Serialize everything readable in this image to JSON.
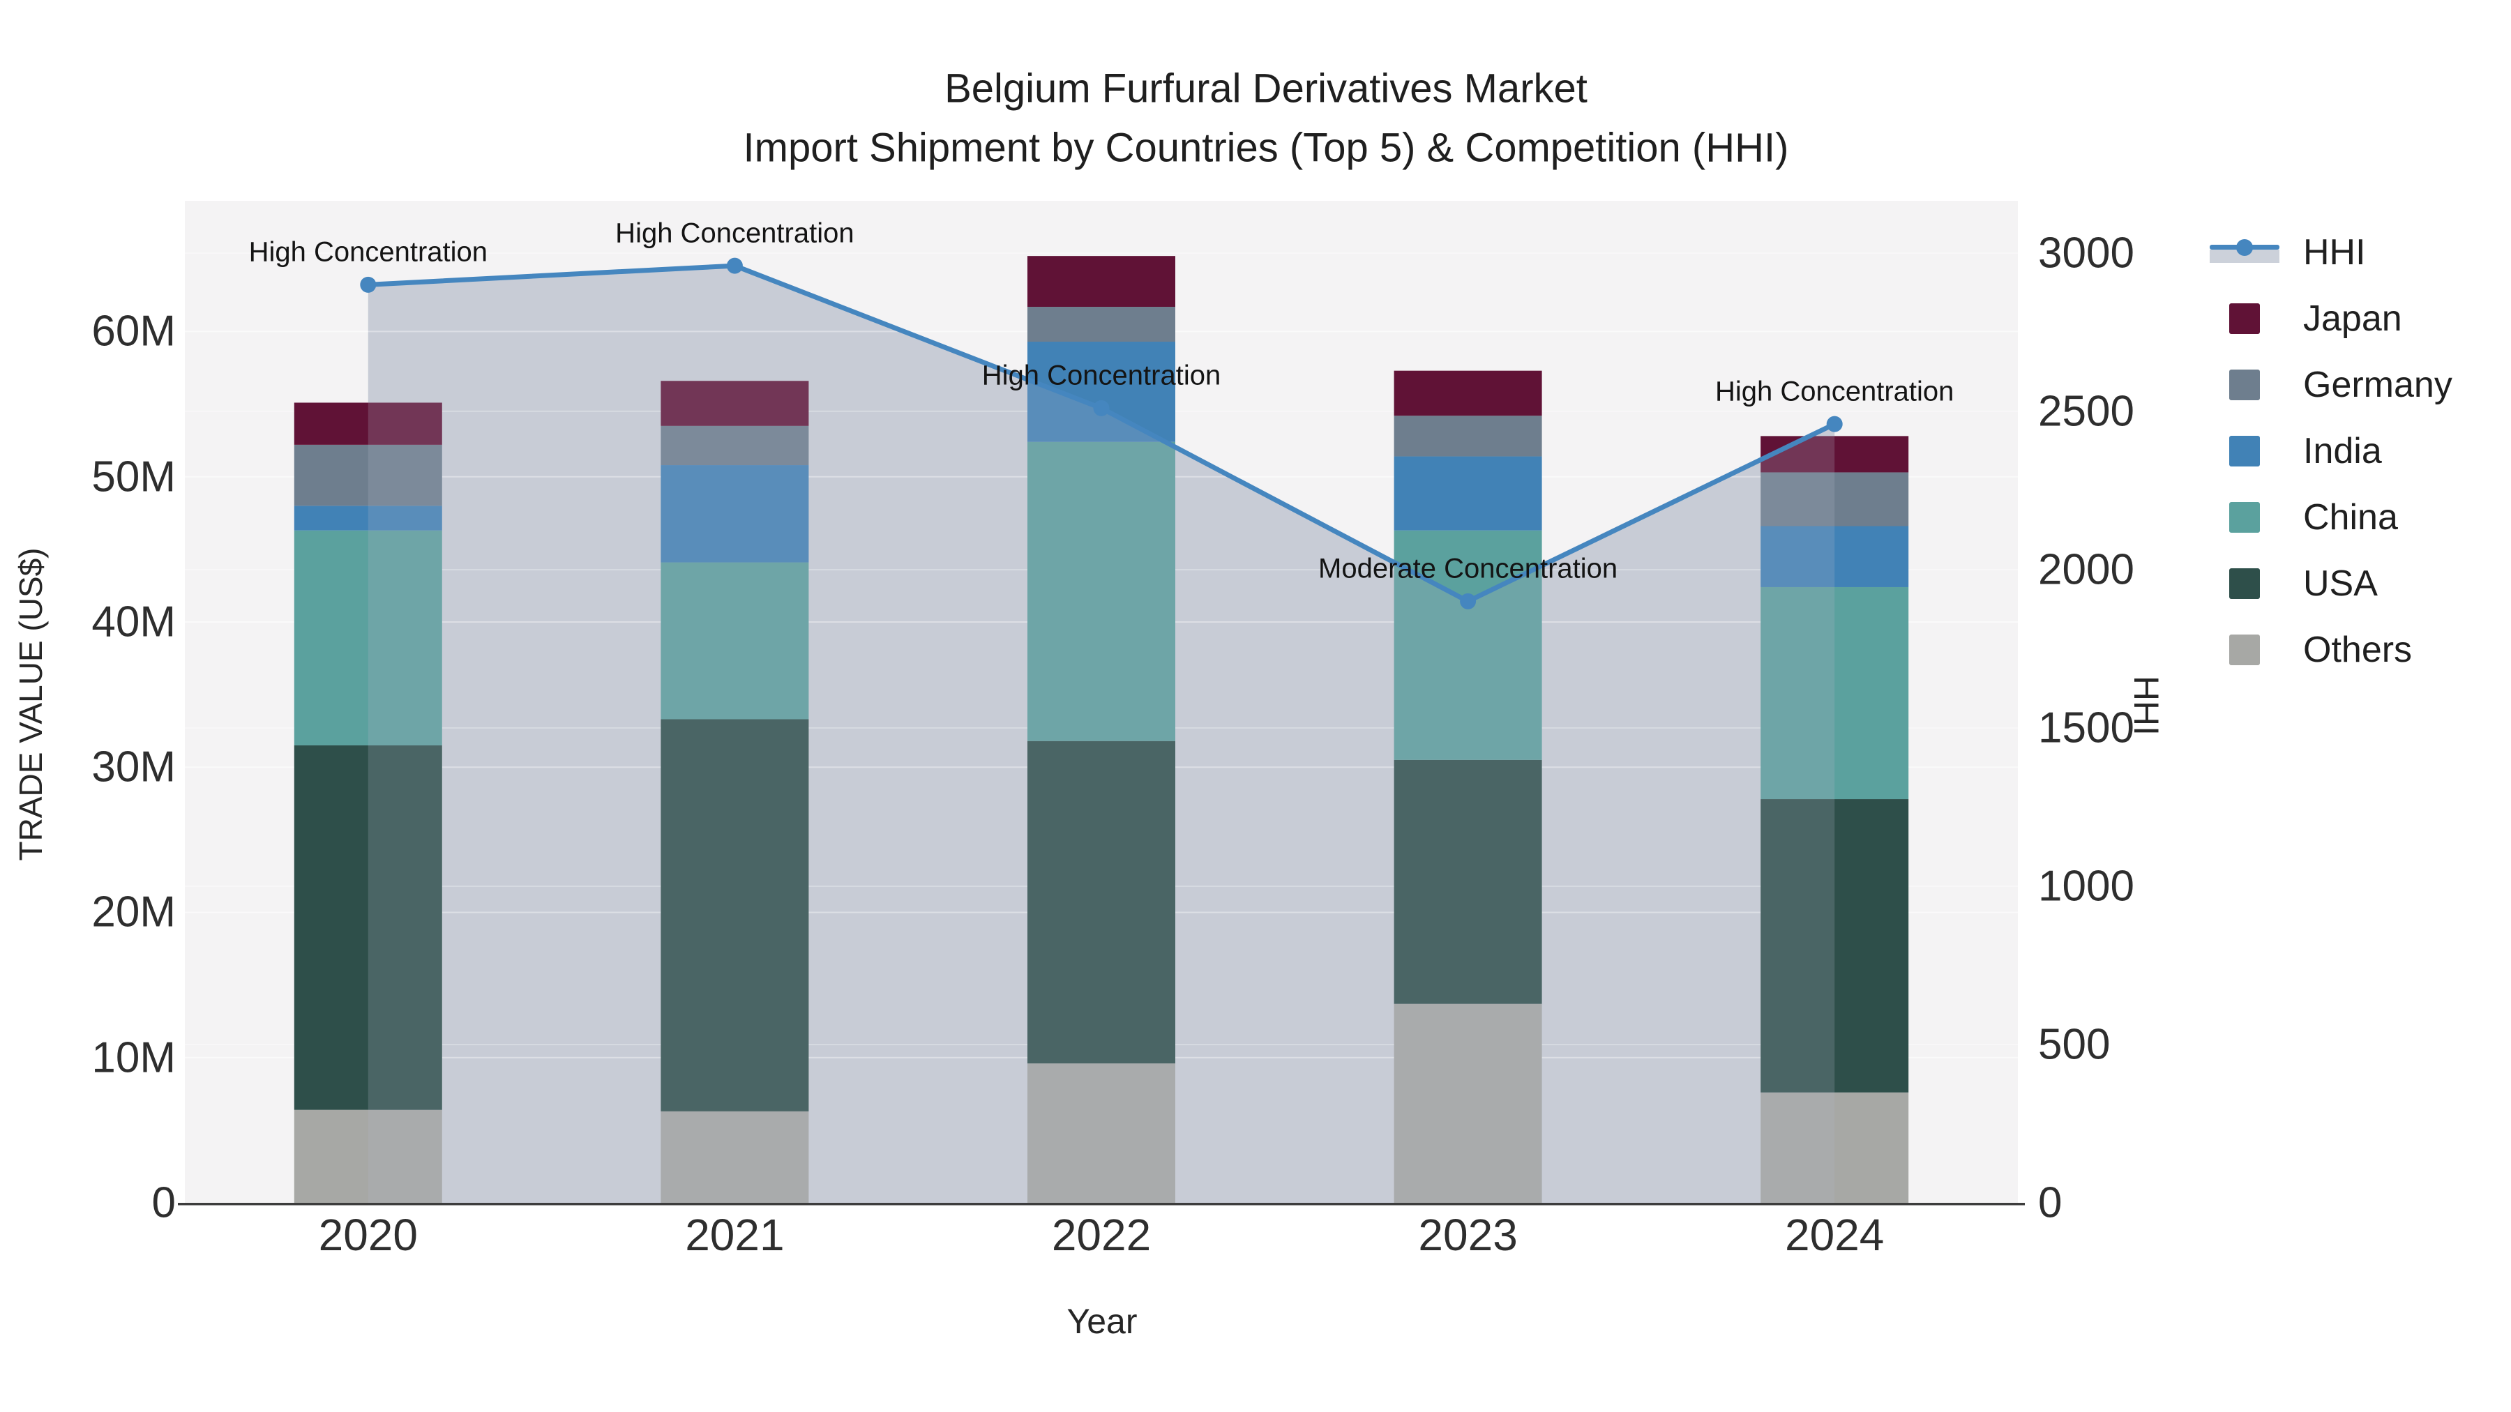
{
  "title": {
    "line1": "Belgium Furfural Derivatives Market",
    "line2": "Import Shipment by Countries (Top 5) & Competition (HHI)"
  },
  "axes": {
    "x_title": "Year",
    "y_left_title": "TRADE VALUE (US$)",
    "y_right_title": "HHI",
    "y_left_ticks": [
      "0",
      "10M",
      "20M",
      "30M",
      "40M",
      "50M",
      "60M"
    ],
    "y_right_ticks": [
      "0",
      "500",
      "1000",
      "1500",
      "2000",
      "2500",
      "3000"
    ]
  },
  "legend": {
    "items": [
      {
        "label": "HHI",
        "color": "#4586bf",
        "type": "line"
      },
      {
        "label": "Japan",
        "color": "#601236",
        "type": "swatch"
      },
      {
        "label": "Germany",
        "color": "#6e7e8e",
        "type": "swatch"
      },
      {
        "label": "India",
        "color": "#4182b6",
        "type": "swatch"
      },
      {
        "label": "China",
        "color": "#5ba19e",
        "type": "swatch"
      },
      {
        "label": "USA",
        "color": "#2e4f4a",
        "type": "swatch"
      },
      {
        "label": "Others",
        "color": "#a7a8a5",
        "type": "swatch"
      }
    ]
  },
  "chart_data": {
    "type": "bar+line",
    "title": "Belgium Furfural Derivatives Market — Import Shipment by Countries (Top 5) & Competition (HHI)",
    "categories": [
      "2020",
      "2021",
      "2022",
      "2023",
      "2024"
    ],
    "bar_unit": "M US$ (trade value)",
    "series": [
      {
        "name": "Others",
        "color": "#a7a8a5",
        "values": [
          6.4,
          6.3,
          9.6,
          13.7,
          7.6
        ]
      },
      {
        "name": "USA",
        "color": "#2e4f4a",
        "values": [
          25.1,
          27.0,
          22.2,
          16.8,
          20.2
        ]
      },
      {
        "name": "China",
        "color": "#5ba19e",
        "values": [
          14.8,
          10.8,
          20.6,
          15.8,
          14.6
        ]
      },
      {
        "name": "India",
        "color": "#4182b6",
        "values": [
          1.7,
          6.7,
          6.9,
          5.1,
          4.2
        ]
      },
      {
        "name": "Germany",
        "color": "#6e7e8e",
        "values": [
          4.2,
          2.7,
          2.4,
          2.8,
          3.7
        ]
      },
      {
        "name": "Japan",
        "color": "#601236",
        "values": [
          2.9,
          3.1,
          3.5,
          3.1,
          2.5
        ]
      }
    ],
    "hhi": {
      "name": "HHI",
      "values": [
        2900,
        2960,
        2510,
        1900,
        2460
      ],
      "line_color": "#4586bf",
      "area_under_fill": "#cfd3da",
      "area_overlay": "rgba(176,184,200,0.22)"
    },
    "annotations": [
      {
        "year": "2020",
        "text": "High Concentration"
      },
      {
        "year": "2021",
        "text": "High Concentration"
      },
      {
        "year": "2022",
        "text": "High Concentration"
      },
      {
        "year": "2023",
        "text": "Moderate Concentration"
      },
      {
        "year": "2024",
        "text": "High Concentration"
      }
    ],
    "xlabel": "Year",
    "ylabel_left": "TRADE VALUE (US$)",
    "ylabel_right": "HHI",
    "ylim_left": [
      0,
      69
    ],
    "ylim_right": [
      0,
      3165
    ],
    "grid": true,
    "legend_position": "right",
    "plot_background": "#f4f3f4"
  }
}
